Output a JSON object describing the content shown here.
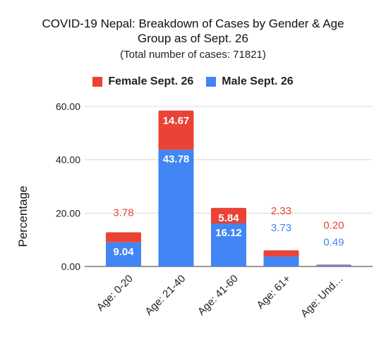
{
  "chart_data": {
    "type": "bar",
    "stacked": true,
    "title_lines": [
      "COVID-19 Nepal: Breakdown of Cases by Gender & Age",
      "Group as of Sept. 26"
    ],
    "subtitle": "(Total number of cases: 71821)",
    "xlabel": "",
    "ylabel": "Percentage",
    "ylim": [
      0,
      60
    ],
    "yticks": [
      0,
      20,
      40,
      60
    ],
    "ytick_labels": [
      "0.00",
      "20.00",
      "40.00",
      "60.00"
    ],
    "grid": true,
    "legend_position": "top",
    "categories": [
      "Age: 0-20",
      "Age: 21-40",
      "Age: 41-60",
      "Age: 61+",
      "Age: Und…"
    ],
    "series": [
      {
        "name": "Male Sept. 26",
        "color": "#4285f4",
        "values": [
          9.04,
          43.78,
          16.12,
          3.73,
          0.49
        ],
        "labels": [
          "9.04",
          "43.78",
          "16.12",
          "3.73",
          "0.49"
        ]
      },
      {
        "name": "Female Sept. 26",
        "color": "#ea4335",
        "values": [
          3.78,
          14.67,
          5.84,
          2.33,
          0.2
        ],
        "labels": [
          "3.78",
          "14.67",
          "5.84",
          "2.33",
          "0.20"
        ]
      }
    ]
  }
}
